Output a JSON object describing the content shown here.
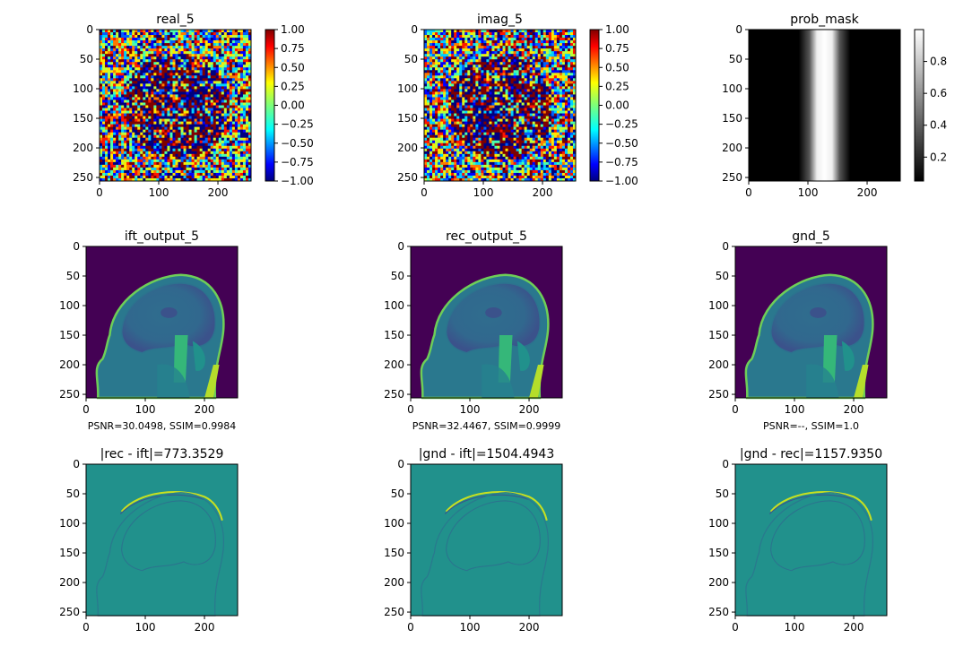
{
  "chart_data": [
    {
      "id": "real",
      "type": "heatmap",
      "title": "real_5",
      "xticks": [
        0,
        100,
        200
      ],
      "yticks": [
        0,
        50,
        100,
        150,
        200,
        250
      ],
      "xlim": [
        0,
        255
      ],
      "ylim": [
        0,
        255
      ],
      "cmap": "jet",
      "pattern": "noise",
      "colorbar": {
        "min": -1.0,
        "max": 1.0,
        "ticks": [
          "1.00",
          "0.75",
          "0.50",
          "0.25",
          "0.00",
          "−0.25",
          "−0.50",
          "−0.75",
          "−1.00"
        ],
        "tick_values": [
          1,
          0.75,
          0.5,
          0.25,
          0,
          -0.25,
          -0.5,
          -0.75,
          -1
        ]
      }
    },
    {
      "id": "imag",
      "type": "heatmap",
      "title": "imag_5",
      "xticks": [
        0,
        100,
        200
      ],
      "yticks": [
        0,
        50,
        100,
        150,
        200,
        250
      ],
      "xlim": [
        0,
        255
      ],
      "ylim": [
        0,
        255
      ],
      "cmap": "jet",
      "pattern": "noise",
      "colorbar": {
        "min": -1.0,
        "max": 1.0,
        "ticks": [
          "1.00",
          "0.75",
          "0.50",
          "0.25",
          "0.00",
          "−0.25",
          "−0.50",
          "−0.75",
          "−1.00"
        ],
        "tick_values": [
          1,
          0.75,
          0.5,
          0.25,
          0,
          -0.25,
          -0.5,
          -0.75,
          -1
        ]
      }
    },
    {
      "id": "mask",
      "type": "heatmap",
      "title": "prob_mask",
      "xticks": [
        0,
        100,
        200
      ],
      "yticks": [
        0,
        50,
        100,
        150,
        200,
        250
      ],
      "xlim": [
        0,
        255
      ],
      "ylim": [
        0,
        255
      ],
      "cmap": "gray",
      "pattern": "vertical-band",
      "band_center": 128,
      "band_width": 60,
      "colorbar": {
        "min": 0.05,
        "max": 1.0,
        "ticks": [
          "0.8",
          "0.6",
          "0.4",
          "0.2"
        ],
        "tick_values": [
          0.8,
          0.6,
          0.4,
          0.2
        ]
      }
    },
    {
      "id": "ift",
      "type": "heatmap",
      "title": "ift_output_5",
      "caption": "PSNR=30.0498, SSIM=0.9984",
      "xticks": [
        0,
        100,
        200
      ],
      "yticks": [
        0,
        50,
        100,
        150,
        200,
        250
      ],
      "xlim": [
        0,
        255
      ],
      "ylim": [
        0,
        255
      ],
      "cmap": "viridis",
      "pattern": "mri"
    },
    {
      "id": "rec",
      "type": "heatmap",
      "title": "rec_output_5",
      "caption": "PSNR=32.4467, SSIM=0.9999",
      "xticks": [
        0,
        100,
        200
      ],
      "yticks": [
        0,
        50,
        100,
        150,
        200,
        250
      ],
      "xlim": [
        0,
        255
      ],
      "ylim": [
        0,
        255
      ],
      "cmap": "viridis",
      "pattern": "mri"
    },
    {
      "id": "gnd",
      "type": "heatmap",
      "title": "gnd_5",
      "caption": "PSNR=--, SSIM=1.0",
      "xticks": [
        0,
        100,
        200
      ],
      "yticks": [
        0,
        50,
        100,
        150,
        200,
        250
      ],
      "xlim": [
        0,
        255
      ],
      "ylim": [
        0,
        255
      ],
      "cmap": "viridis",
      "pattern": "mri"
    },
    {
      "id": "diff1",
      "type": "heatmap",
      "title": "|rec - ift|=773.3529",
      "xticks": [
        0,
        100,
        200
      ],
      "yticks": [
        0,
        50,
        100,
        150,
        200,
        250
      ],
      "xlim": [
        0,
        255
      ],
      "ylim": [
        0,
        255
      ],
      "cmap": "viridis",
      "pattern": "diff"
    },
    {
      "id": "diff2",
      "type": "heatmap",
      "title": "|gnd - ift|=1504.4943",
      "xticks": [
        0,
        100,
        200
      ],
      "yticks": [
        0,
        50,
        100,
        150,
        200,
        250
      ],
      "xlim": [
        0,
        255
      ],
      "ylim": [
        0,
        255
      ],
      "cmap": "viridis",
      "pattern": "diff"
    },
    {
      "id": "diff3",
      "type": "heatmap",
      "title": "|gnd - rec|=1157.9350",
      "xticks": [
        0,
        100,
        200
      ],
      "yticks": [
        0,
        50,
        100,
        150,
        200,
        250
      ],
      "xlim": [
        0,
        255
      ],
      "ylim": [
        0,
        255
      ],
      "cmap": "viridis",
      "pattern": "diff"
    }
  ]
}
